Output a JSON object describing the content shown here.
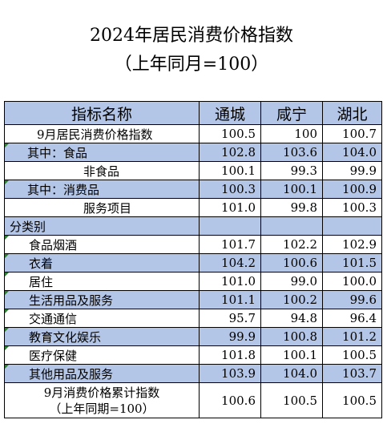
{
  "title": "2024年居民消费价格指数",
  "subtitle": "（上年同月=100）",
  "columns": [
    "指标名称",
    "通城",
    "咸宁",
    "湖北"
  ],
  "rows": [
    {
      "label": "9月居民消费价格指数",
      "values": [
        "100.5",
        "100",
        "100.7"
      ]
    },
    {
      "label": "其中：食品",
      "values": [
        "102.8",
        "103.6",
        "104.0"
      ]
    },
    {
      "label": "非食品",
      "values": [
        "100.1",
        "99.3",
        "99.9"
      ]
    },
    {
      "label": "其中：消费品",
      "values": [
        "100.3",
        "100.1",
        "100.9"
      ]
    },
    {
      "label": "服务项目",
      "values": [
        "101.0",
        "99.8",
        "100.3"
      ]
    },
    {
      "label": "分类别",
      "values": [
        "",
        "",
        ""
      ]
    },
    {
      "label": "食品烟酒",
      "values": [
        "101.7",
        "102.2",
        "102.9"
      ]
    },
    {
      "label": "衣着",
      "values": [
        "104.2",
        "100.6",
        "101.5"
      ]
    },
    {
      "label": "居住",
      "values": [
        "101.0",
        "99.0",
        "100.0"
      ]
    },
    {
      "label": "生活用品及服务",
      "values": [
        "101.1",
        "100.2",
        "99.6"
      ]
    },
    {
      "label": "交通通信",
      "values": [
        "95.7",
        "94.8",
        "96.4"
      ]
    },
    {
      "label": "教育文化娱乐",
      "values": [
        "99.9",
        "100.8",
        "101.2"
      ]
    },
    {
      "label": "医疗保健",
      "values": [
        "101.8",
        "100.1",
        "100.5"
      ]
    },
    {
      "label": "其他用品及服务",
      "values": [
        "103.9",
        "104.0",
        "103.7"
      ]
    }
  ],
  "cumulative": {
    "label_line1": "9月消费价格累计指数",
    "label_line2": "（上年同期=100）",
    "values": [
      "100.6",
      "100.5",
      "100.5"
    ]
  }
}
